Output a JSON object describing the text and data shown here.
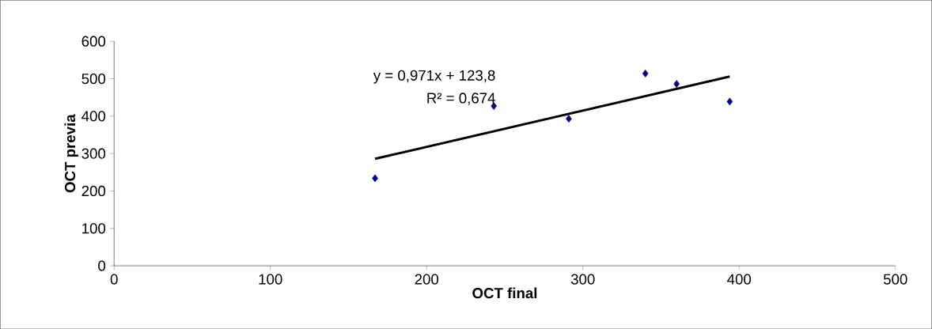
{
  "chart_data": {
    "type": "scatter",
    "xlabel": "OCT final",
    "ylabel": "OCT previa",
    "xlim": [
      0,
      500
    ],
    "ylim": [
      0,
      600
    ],
    "xticks": [
      0,
      100,
      200,
      300,
      400,
      500
    ],
    "yticks": [
      0,
      100,
      200,
      300,
      400,
      500,
      600
    ],
    "grid": false,
    "marker": "diamond",
    "series": [
      {
        "color": "#000080",
        "x": [
          167,
          243,
          291,
          340,
          360,
          394
        ],
        "values": [
          234,
          427,
          393,
          514,
          486,
          439
        ]
      },
      {
        "type": "line",
        "color": "#000000",
        "marker": "none",
        "x": [
          167,
          394
        ],
        "values": [
          286,
          506
        ]
      }
    ],
    "annotations": [
      "y = 0,971x + 123,8",
      "R² = 0,674"
    ]
  }
}
